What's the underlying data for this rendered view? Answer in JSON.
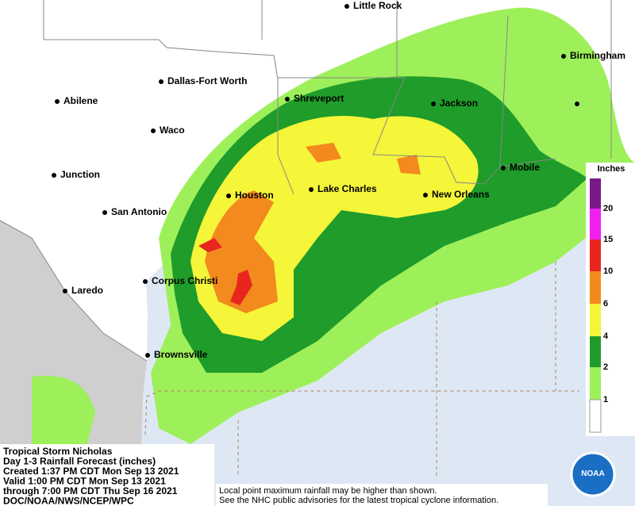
{
  "cities": [
    "Little Rock",
    "Birmingham",
    "Dallas-Fort Worth",
    "Abilene",
    "Shreveport",
    "Jackson",
    "Waco",
    "Mobile",
    "Junction",
    "Houston",
    "Lake Charles",
    "New Orleans",
    "San Antonio",
    "Corpus Christi",
    "Laredo",
    "Brownsville"
  ],
  "legend": {
    "title": "Inches",
    "ticks": [
      20,
      15,
      10,
      6,
      4,
      2,
      1
    ]
  },
  "info": {
    "lines": [
      "Tropical Storm Nicholas",
      "Day 1-3 Rainfall Forecast (inches)",
      "Created 1:37 PM CDT Mon Sep 13 2021",
      "Valid 1:00 PM CDT Mon Sep 13 2021",
      "through 7:00 PM CDT Thu Sep 16 2021",
      "DOC/NOAA/NWS/NCEP/WPC"
    ]
  },
  "footnote": {
    "lines": [
      "Local point maximum rainfall may be higher than shown.",
      "See the NHC public advisories for the latest tropical cyclone information."
    ]
  },
  "logo": "NOAA"
}
